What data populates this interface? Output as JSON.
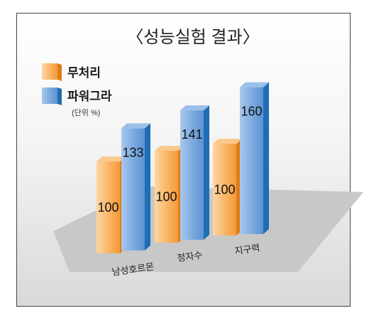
{
  "chart_data": {
    "type": "bar",
    "title": "〈성능실험 결과〉",
    "unit": "(단위 %)",
    "categories": [
      "남성호르몬",
      "정자수",
      "지구력"
    ],
    "series": [
      {
        "name": "무처리",
        "color": "#f5922b",
        "values": [
          100,
          100,
          100
        ]
      },
      {
        "name": "파워그라",
        "color": "#2f7fc4",
        "values": [
          133,
          141,
          160
        ]
      }
    ],
    "ylim": [
      0,
      160
    ],
    "grid": false,
    "legend_position": "top-left"
  }
}
